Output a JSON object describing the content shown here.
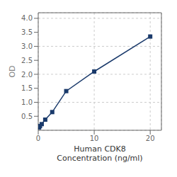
{
  "chart_data": {
    "type": "line",
    "x": [
      0.156,
      0.313,
      0.625,
      1.25,
      2.5,
      5,
      10,
      20
    ],
    "values": [
      0.1,
      0.15,
      0.22,
      0.38,
      0.65,
      1.4,
      2.1,
      3.35
    ],
    "xlabel": "Human CDK8\nConcentration (ng/ml)",
    "ylabel": "OD",
    "xlim": [
      0,
      22
    ],
    "ylim": [
      0,
      4.2
    ],
    "xticks": [
      0,
      10,
      20
    ],
    "yticks": [
      0.5,
      {
        "value": 1.0,
        "label": "1.0"
      },
      1.5,
      {
        "value": 2.0,
        "label": "2.0"
      },
      2.5,
      {
        "value": 3.0,
        "label": "3.0"
      },
      3.5,
      {
        "value": 4.0,
        "label": "4.0"
      }
    ],
    "grid": true,
    "color": "#1a3a6b",
    "marker": "square"
  }
}
